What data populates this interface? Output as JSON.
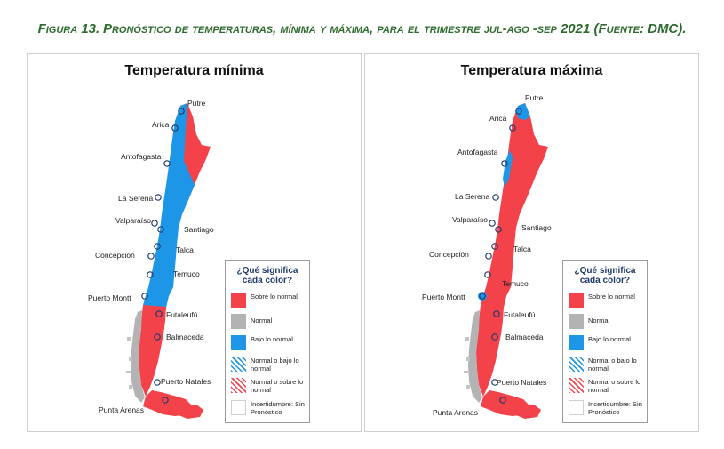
{
  "figure": {
    "label": "Figura 13.",
    "caption": "Pronóstico de temperaturas, mínima y máxima, para el trimestre jul-ago -sep 2021 (Fuente: DMC)."
  },
  "colors": {
    "above_normal": "#f4424b",
    "normal": "#b3b3b3",
    "below_normal": "#1e96e8",
    "caption_green": "#2e6b2e",
    "legend_title": "#1f3b6a"
  },
  "maps": {
    "min": {
      "title": "Temperatura mínima"
    },
    "max": {
      "title": "Temperatura máxima"
    }
  },
  "cities": {
    "putre": "Putre",
    "arica": "Arica",
    "antofagasta": "Antofagasta",
    "la_serena": "La Serena",
    "valparaiso": "Valparaíso",
    "santiago": "Santiago",
    "talca": "Talca",
    "concepcion": "Concepción",
    "temuco": "Temuco",
    "puerto_montt": "Puerto Montt",
    "futaleufu": "Futaleufú",
    "balmaceda": "Balmaceda",
    "puerto_natales": "Puerto Natales",
    "punta_arenas": "Punta Arenas"
  },
  "legend": {
    "title": "¿Qué significa cada color?",
    "items": [
      {
        "label": "Sobre lo normal",
        "color": "#f4424b"
      },
      {
        "label": "Normal",
        "color": "#b3b3b3"
      },
      {
        "label": "Bajo lo normal",
        "color": "#1e96e8"
      },
      {
        "label": "Normal o bajo lo normal",
        "color": "#1e96e8",
        "pattern": "hatched"
      },
      {
        "label": "Normal o sobre lo normal",
        "color": "#f4424b",
        "pattern": "hatched"
      },
      {
        "label": "Incertidumbre: Sin Pronóstico",
        "color": "#ffffff"
      }
    ]
  }
}
